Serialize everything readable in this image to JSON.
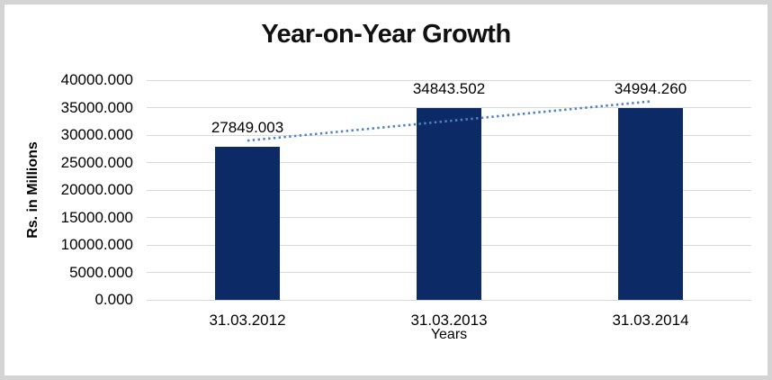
{
  "frame": {
    "border_color": "#d4d4d4",
    "background_color": "#ffffff"
  },
  "chart_data": {
    "type": "bar",
    "title": "Year-on-Year Growth",
    "categories": [
      "31.03.2012",
      "31.03.2013",
      "31.03.2014"
    ],
    "values": [
      27849.003,
      34843.502,
      34994.26
    ],
    "data_labels": [
      "27849.003",
      "34843.502",
      "34994.260"
    ],
    "xlabel": "Years",
    "ylabel": "Rs. in Millions",
    "ylim": [
      0,
      40000
    ],
    "ytick_step": 5000,
    "ytick_labels": [
      "0.000",
      "5000.000",
      "10000.000",
      "15000.000",
      "20000.000",
      "25000.000",
      "30000.000",
      "35000.000",
      "40000.000"
    ],
    "grid": true,
    "legend": "none",
    "colors": {
      "bar": "#0b2a66",
      "trendline": "#4e81c5",
      "gridline": "#d9d9d9",
      "text": "#000000"
    },
    "trendline": {
      "type": "linear",
      "style": "dotted"
    }
  }
}
